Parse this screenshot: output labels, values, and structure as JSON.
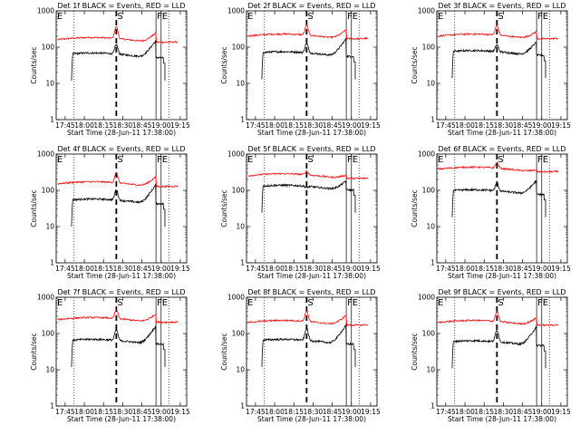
{
  "chart_data": {
    "type": "line",
    "y_scale": "log",
    "ylim": [
      1,
      1000
    ],
    "y_ticks": [
      "1",
      "10",
      "100",
      "1000"
    ],
    "x_ticks": [
      "17:45",
      "18:00",
      "18:15",
      "18:30",
      "18:45",
      "19:00",
      "19:15"
    ],
    "xlabel": "Start Time (28-Jun-11 17:38:00)",
    "ylabel": "Counts/sec",
    "series_colors": {
      "events": "#000000",
      "lld": "#ff0000"
    },
    "markers": [
      {
        "label": "E",
        "style": "dotted",
        "x": "17:38"
      },
      {
        "label": "",
        "style": "dotted",
        "x": "17:52"
      },
      {
        "label": "S",
        "style": "dashed",
        "x": "18:25"
      },
      {
        "label": "F",
        "style": "solid",
        "x": "18:56"
      },
      {
        "label": "E",
        "style": "solid",
        "x": "19:00"
      },
      {
        "label": "",
        "style": "dotted",
        "x": "19:06"
      }
    ],
    "panels": [
      {
        "title": "Det 1f BLACK = Events, RED = LLD",
        "events": {
          "start": "17:50",
          "end": "19:03",
          "base": 60,
          "peak_s": 110,
          "peak_f": 160
        },
        "lld": {
          "start": "17:39",
          "end": "19:13",
          "base": 160,
          "peak_s": 350,
          "peak_f": 270
        }
      },
      {
        "title": "Det 2f BLACK = Events, RED = LLD",
        "events": {
          "start": "17:50",
          "end": "19:03",
          "base": 65,
          "peak_s": 120,
          "peak_f": 180
        },
        "lld": {
          "start": "17:39",
          "end": "19:13",
          "base": 200,
          "peak_s": 380,
          "peak_f": 330
        }
      },
      {
        "title": "Det 3f BLACK = Events, RED = LLD",
        "events": {
          "start": "17:50",
          "end": "19:03",
          "base": 70,
          "peak_s": 110,
          "peak_f": 150
        },
        "lld": {
          "start": "17:39",
          "end": "19:13",
          "base": 200,
          "peak_s": 380,
          "peak_f": 300
        }
      },
      {
        "title": "Det 4f BLACK = Events, RED = LLD",
        "events": {
          "start": "17:50",
          "end": "19:03",
          "base": 50,
          "peak_s": 100,
          "peak_f": 150
        },
        "lld": {
          "start": "17:39",
          "end": "19:13",
          "base": 150,
          "peak_s": 290,
          "peak_f": 260
        }
      },
      {
        "title": "Det 5f BLACK = Events, RED = LLD",
        "events": {
          "start": "17:50",
          "end": "19:03",
          "base": 120,
          "peak_s": 110,
          "peak_f": 200
        },
        "lld": {
          "start": "17:39",
          "end": "19:13",
          "base": 250,
          "peak_s": 320,
          "peak_f": 300
        }
      },
      {
        "title": "Det 6f BLACK = Events, RED = LLD",
        "events": {
          "start": "17:50",
          "end": "19:03",
          "base": 90,
          "peak_s": 150,
          "peak_f": 200
        },
        "lld": {
          "start": "17:39",
          "end": "19:13",
          "base": 380,
          "peak_s": 550,
          "peak_f": 420
        }
      },
      {
        "title": "Det 7f BLACK = Events, RED = LLD",
        "events": {
          "start": "17:50",
          "end": "19:03",
          "base": 60,
          "peak_s": 120,
          "peak_f": 170
        },
        "lld": {
          "start": "17:39",
          "end": "19:13",
          "base": 240,
          "peak_s": 420,
          "peak_f": 380
        }
      },
      {
        "title": "Det 8f BLACK = Events, RED = LLD",
        "events": {
          "start": "17:50",
          "end": "19:03",
          "base": 60,
          "peak_s": 130,
          "peak_f": 180
        },
        "lld": {
          "start": "17:39",
          "end": "19:13",
          "base": 200,
          "peak_s": 400,
          "peak_f": 350
        }
      },
      {
        "title": "Det 9f BLACK = Events, RED = LLD",
        "events": {
          "start": "17:50",
          "end": "19:03",
          "base": 55,
          "peak_s": 120,
          "peak_f": 160
        },
        "lld": {
          "start": "17:39",
          "end": "19:13",
          "base": 200,
          "peak_s": 380,
          "peak_f": 300
        }
      }
    ]
  }
}
